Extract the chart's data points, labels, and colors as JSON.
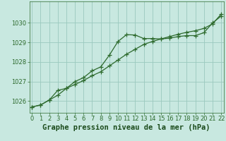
{
  "title": "Graphe pression niveau de la mer (hPa)",
  "x_values": [
    0,
    1,
    2,
    3,
    4,
    5,
    6,
    7,
    8,
    9,
    10,
    11,
    12,
    13,
    14,
    15,
    16,
    17,
    18,
    19,
    20,
    21,
    22
  ],
  "line1": [
    1025.7,
    1025.8,
    1026.05,
    1026.55,
    1026.65,
    1027.0,
    1027.2,
    1027.55,
    1027.75,
    1028.35,
    1029.05,
    1029.4,
    1029.38,
    1029.2,
    1029.2,
    1029.18,
    1029.22,
    1029.3,
    1029.35,
    1029.35,
    1029.5,
    1030.0,
    1030.35
  ],
  "line2": [
    1025.7,
    1025.8,
    1026.05,
    1026.3,
    1026.65,
    1026.85,
    1027.05,
    1027.3,
    1027.5,
    1027.8,
    1028.1,
    1028.4,
    1028.65,
    1028.9,
    1029.05,
    1029.18,
    1029.3,
    1029.42,
    1029.52,
    1029.6,
    1029.72,
    1029.95,
    1030.45
  ],
  "line_color": "#2d6a2d",
  "bg_color": "#c8e8e0",
  "grid_color": "#9ac8be",
  "xlabel_color": "#1a4a1a",
  "ylim": [
    1025.4,
    1031.1
  ],
  "xlim": [
    -0.3,
    22.3
  ],
  "yticks": [
    1026,
    1027,
    1028,
    1029,
    1030
  ],
  "xticks": [
    0,
    1,
    2,
    3,
    4,
    5,
    6,
    7,
    8,
    9,
    10,
    11,
    12,
    13,
    14,
    15,
    16,
    17,
    18,
    19,
    20,
    21,
    22
  ],
  "title_fontsize": 7.5,
  "tick_fontsize": 6.0,
  "marker": "+",
  "markersize": 4,
  "linewidth": 0.9
}
